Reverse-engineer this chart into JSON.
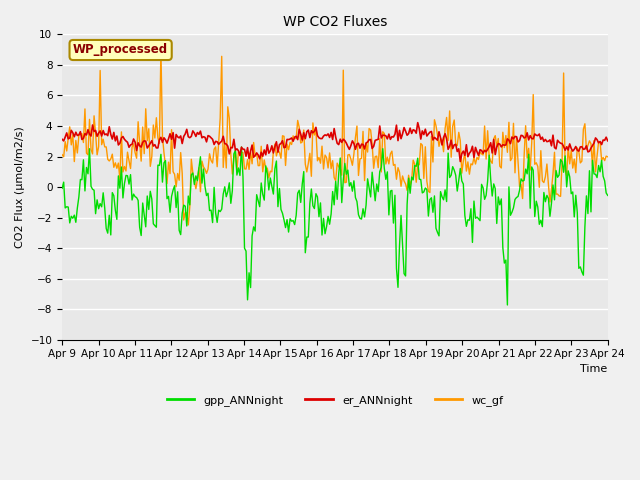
{
  "title": "WP CO2 Fluxes",
  "xlabel": "Time",
  "ylabel": "CO2 Flux (μmol/m2/s)",
  "ylim": [
    -10,
    10
  ],
  "yticks": [
    -10,
    -8,
    -6,
    -4,
    -2,
    0,
    2,
    4,
    6,
    8,
    10
  ],
  "xtick_labels": [
    "Apr 9",
    "Apr 10",
    "Apr 11",
    "Apr 12",
    "Apr 13",
    "Apr 14",
    "Apr 15",
    "Apr 16",
    "Apr 17",
    "Apr 18",
    "Apr 19",
    "Apr 20",
    "Apr 21",
    "Apr 22",
    "Apr 23",
    "Apr 24"
  ],
  "n_points": 360,
  "n_days": 15,
  "gpp_color": "#00dd00",
  "er_color": "#dd0000",
  "wc_color": "#ff9900",
  "legend_label": "WP_processed",
  "legend_bg": "#ffffbb",
  "legend_border": "#aa8800",
  "fig_bg": "#f0f0f0",
  "plot_bg": "#e8e8e8",
  "grid_color": "#ffffff",
  "linewidth_gpp": 1.0,
  "linewidth_er": 1.2,
  "linewidth_wc": 1.0,
  "title_fontsize": 10,
  "label_fontsize": 8,
  "tick_fontsize": 7.5,
  "legend_fontsize": 8
}
